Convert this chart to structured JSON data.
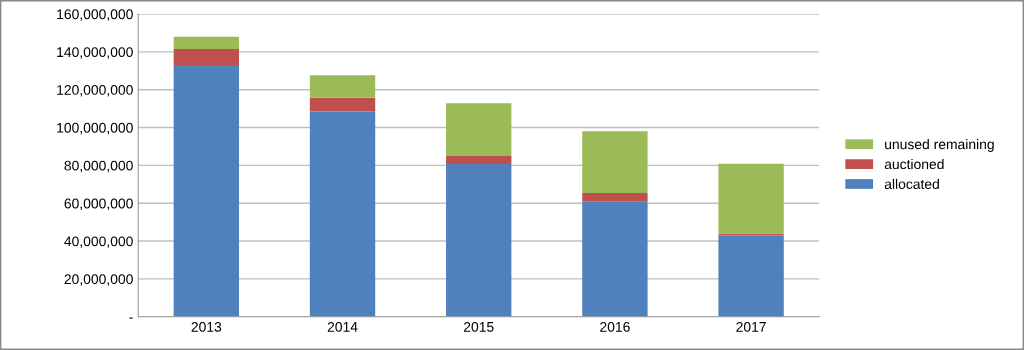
{
  "chart_data": {
    "type": "bar",
    "stacked": true,
    "categories": [
      "2013",
      "2014",
      "2015",
      "2016",
      "2017"
    ],
    "series": [
      {
        "name": "allocated",
        "color": "#4f81bd",
        "values": [
          133000000,
          108500000,
          80700000,
          60800000,
          42900000
        ]
      },
      {
        "name": "auctioned",
        "color": "#c0504d",
        "values": [
          8500000,
          7300000,
          4200000,
          4600000,
          1000000
        ]
      },
      {
        "name": "unused remaining",
        "color": "#9bbb59",
        "values": [
          6500000,
          11800000,
          27900000,
          32600000,
          36900000
        ]
      }
    ],
    "ylim": [
      0,
      160000000
    ],
    "yticks": [
      {
        "value": 0,
        "label": "-"
      },
      {
        "value": 20000000,
        "label": "20,000,000"
      },
      {
        "value": 40000000,
        "label": "40,000,000"
      },
      {
        "value": 60000000,
        "label": "60,000,000"
      },
      {
        "value": 80000000,
        "label": "80,000,000"
      },
      {
        "value": 100000000,
        "label": "100,000,000"
      },
      {
        "value": 120000000,
        "label": "120,000,000"
      },
      {
        "value": 140000000,
        "label": "140,000,000"
      },
      {
        "value": 160000000,
        "label": "160,000,000"
      }
    ],
    "grid": "y",
    "legend": "right"
  }
}
